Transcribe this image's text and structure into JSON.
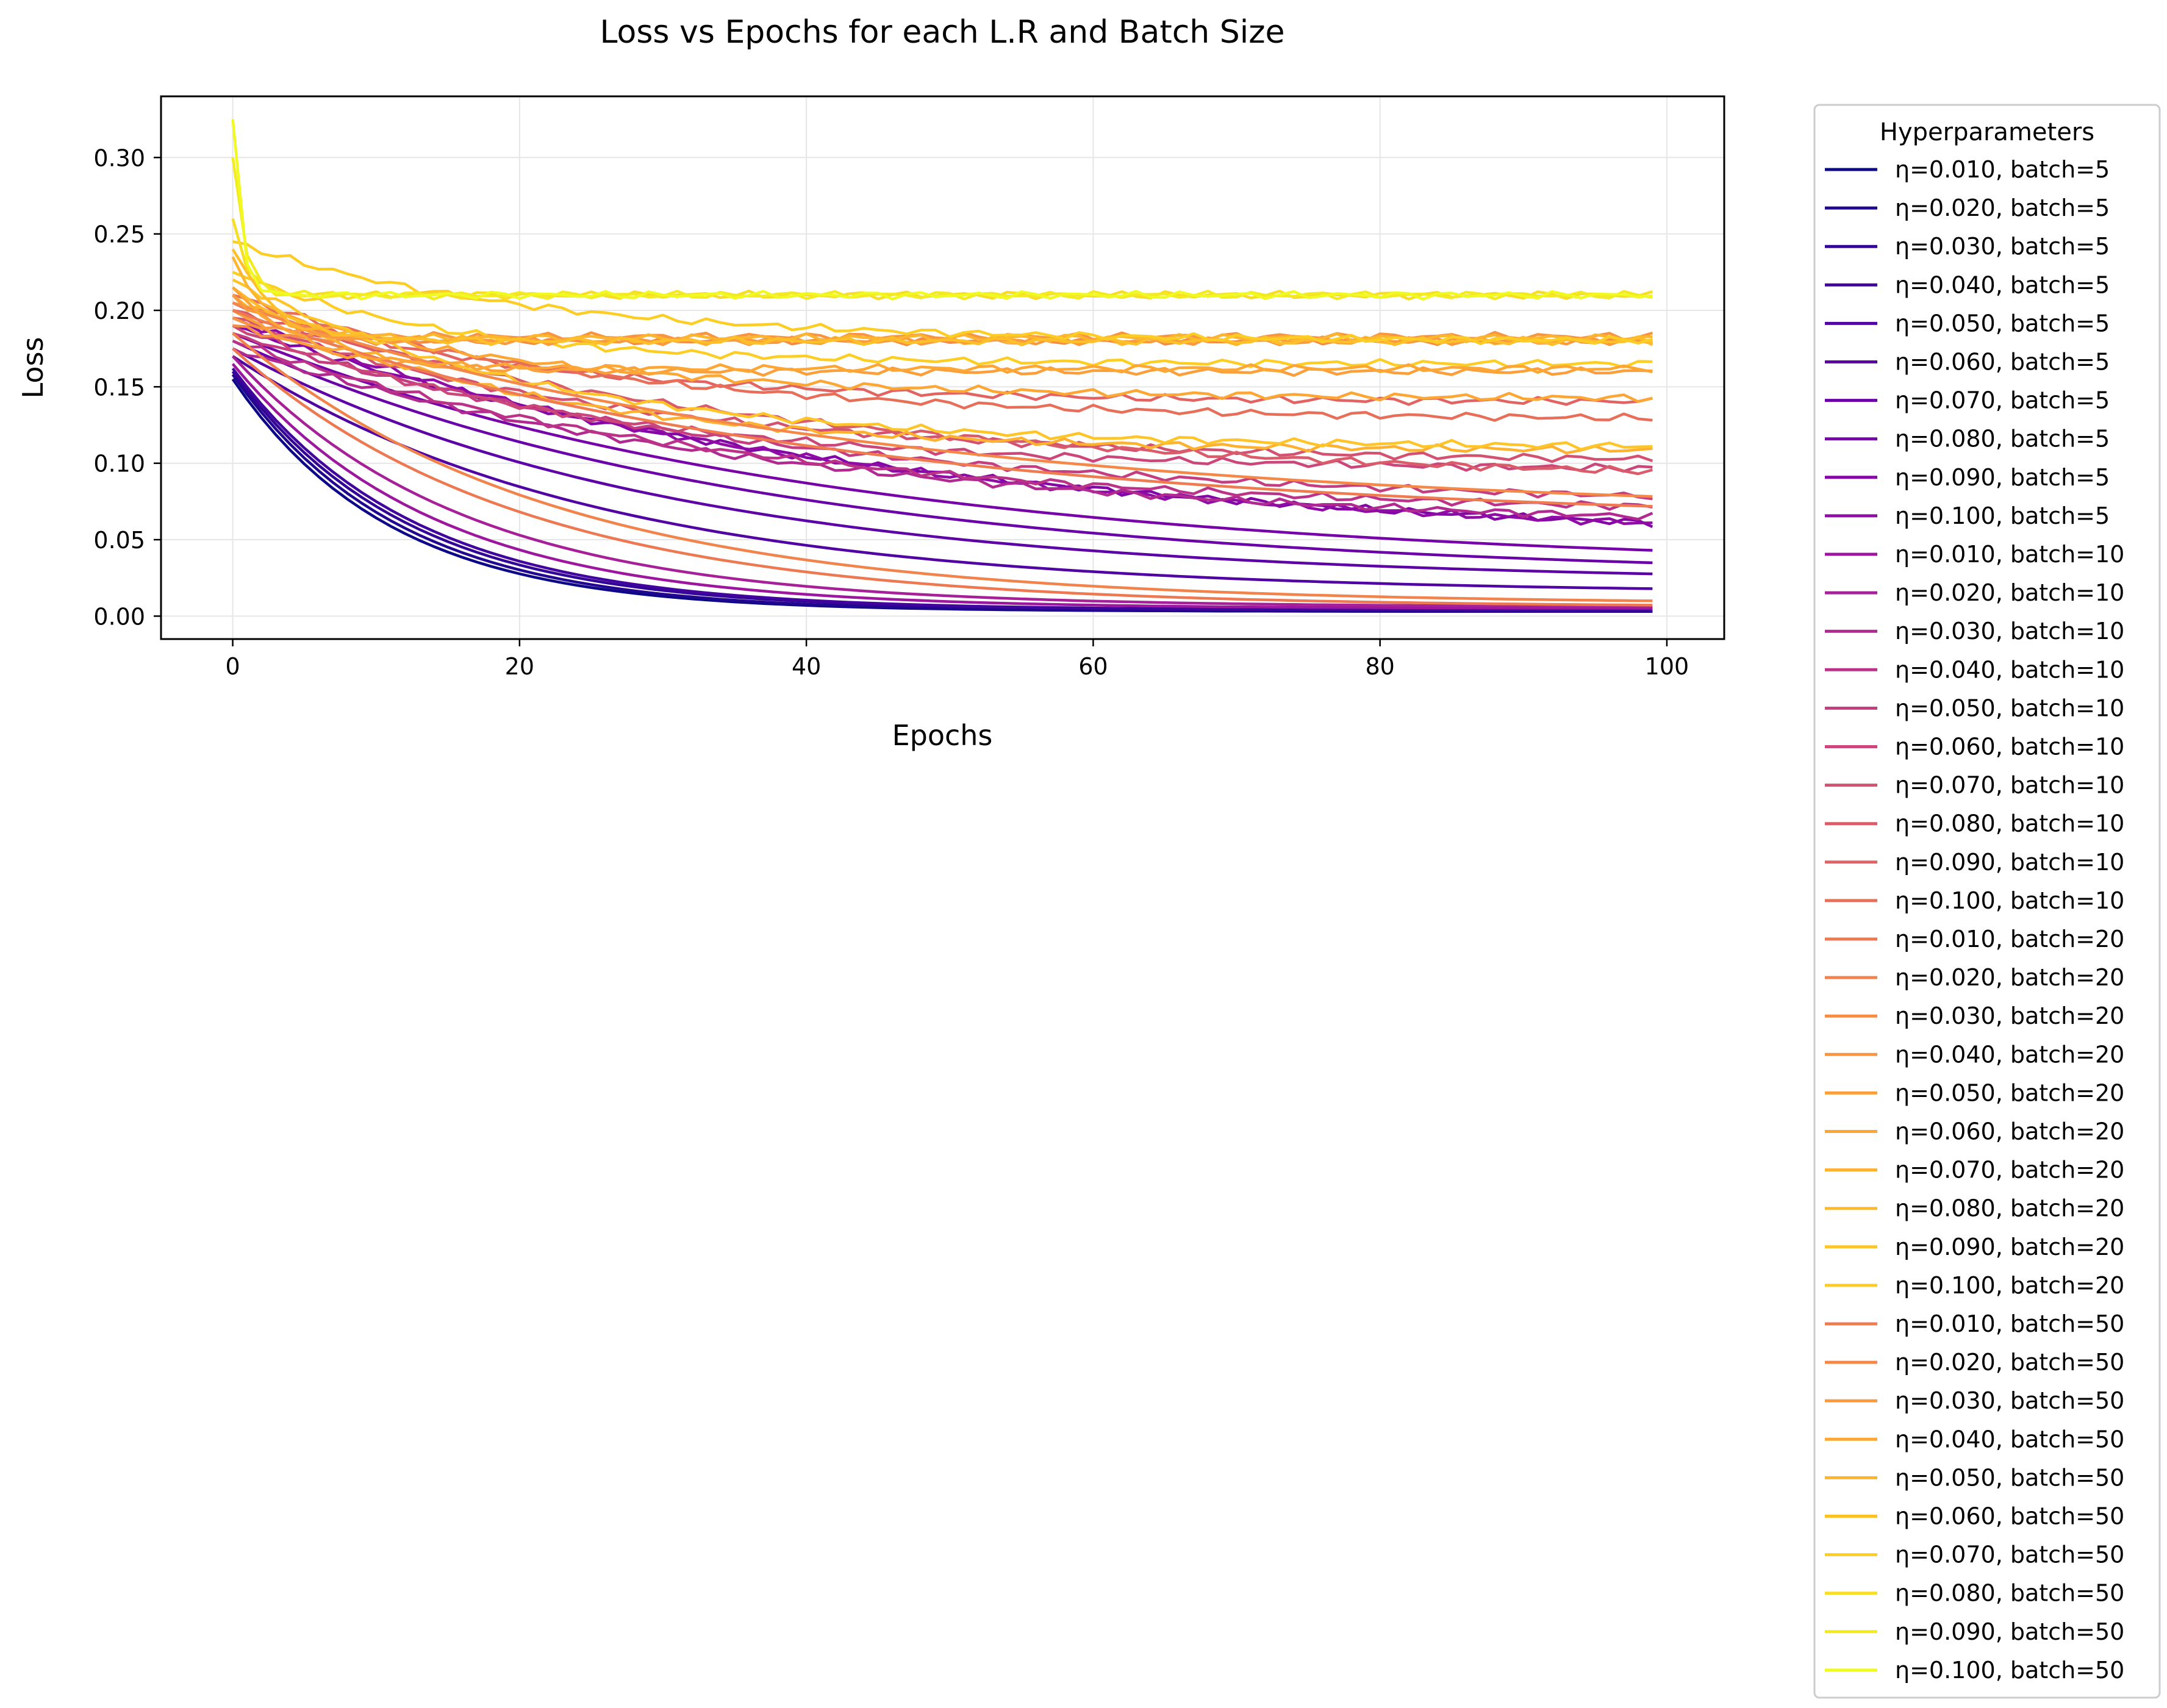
{
  "chart_data": {
    "type": "line",
    "title": "Loss vs Epochs for each L.R and Batch Size",
    "xlabel": "Epochs",
    "ylabel": "Loss",
    "xlim": [
      -5,
      104
    ],
    "ylim": [
      -0.015,
      0.34
    ],
    "xticks": [
      0,
      20,
      40,
      60,
      80,
      100
    ],
    "xtick_labels": [
      "0",
      "20",
      "40",
      "60",
      "80",
      "100"
    ],
    "yticks": [
      0.0,
      0.05,
      0.1,
      0.15,
      0.2,
      0.25,
      0.3
    ],
    "ytick_labels": [
      "0.00",
      "0.05",
      "0.10",
      "0.15",
      "0.20",
      "0.25",
      "0.30"
    ],
    "grid": true,
    "legend_title": "Hyperparameters",
    "legend_position": "outside-right",
    "x_range": [
      0,
      99
    ],
    "series": [
      {
        "name": "η=0.010, batch=5",
        "color": "#0d0887",
        "start": 0.155,
        "end": 0.003,
        "tau": 11.0,
        "smooth": true
      },
      {
        "name": "η=0.020, batch=5",
        "color": "#220690",
        "start": 0.158,
        "end": 0.003,
        "tau": 11.5,
        "smooth": true
      },
      {
        "name": "η=0.030, batch=5",
        "color": "#330597",
        "start": 0.16,
        "end": 0.004,
        "tau": 12.0,
        "smooth": true
      },
      {
        "name": "η=0.040, batch=5",
        "color": "#41049d",
        "start": 0.162,
        "end": 0.004,
        "tau": 12.5,
        "smooth": true
      },
      {
        "name": "η=0.050, batch=5",
        "color": "#5002a2",
        "start": 0.17,
        "end": 0.015,
        "tau": 25.0,
        "smooth": true
      },
      {
        "name": "η=0.060, batch=5",
        "color": "#5c01a6",
        "start": 0.175,
        "end": 0.022,
        "tau": 30.0,
        "smooth": true
      },
      {
        "name": "η=0.070, batch=5",
        "color": "#6a00a8",
        "start": 0.18,
        "end": 0.025,
        "tau": 36.0,
        "smooth": true
      },
      {
        "name": "η=0.080, batch=5",
        "color": "#7701a8",
        "start": 0.185,
        "end": 0.03,
        "tau": 40.0,
        "smooth": true
      },
      {
        "name": "η=0.090, batch=5",
        "color": "#8405a7",
        "start": 0.19,
        "end": 0.045,
        "tau": 45.0,
        "smooth": false
      },
      {
        "name": "η=0.100, batch=5",
        "color": "#8f0da4",
        "start": 0.195,
        "end": 0.047,
        "tau": 42.0,
        "smooth": false
      },
      {
        "name": "η=0.010, batch=10",
        "color": "#9c179e",
        "start": 0.165,
        "end": 0.005,
        "tau": 14.0,
        "smooth": true
      },
      {
        "name": "η=0.020, batch=10",
        "color": "#a62098",
        "start": 0.17,
        "end": 0.006,
        "tau": 16.0,
        "smooth": true
      },
      {
        "name": "η=0.030, batch=10",
        "color": "#b12a90",
        "start": 0.175,
        "end": 0.055,
        "tau": 40.0,
        "smooth": false
      },
      {
        "name": "η=0.040, batch=10",
        "color": "#ba3388",
        "start": 0.18,
        "end": 0.065,
        "tau": 35.0,
        "smooth": false
      },
      {
        "name": "η=0.050, batch=10",
        "color": "#c33d80",
        "start": 0.185,
        "end": 0.07,
        "tau": 38.0,
        "smooth": false
      },
      {
        "name": "η=0.060, batch=10",
        "color": "#cb4679",
        "start": 0.19,
        "end": 0.095,
        "tau": 25.0,
        "smooth": false
      },
      {
        "name": "η=0.070, batch=10",
        "color": "#d35171",
        "start": 0.195,
        "end": 0.1,
        "tau": 28.0,
        "smooth": false
      },
      {
        "name": "η=0.080, batch=10",
        "color": "#da5b69",
        "start": 0.2,
        "end": 0.085,
        "tau": 40.0,
        "smooth": false
      },
      {
        "name": "η=0.090, batch=10",
        "color": "#e16462",
        "start": 0.205,
        "end": 0.14,
        "tau": 20.0,
        "smooth": false
      },
      {
        "name": "η=0.100, batch=10",
        "color": "#e76f5a",
        "start": 0.21,
        "end": 0.128,
        "tau": 25.0,
        "smooth": false
      },
      {
        "name": "η=0.010, batch=20",
        "color": "#ed7953",
        "start": 0.175,
        "end": 0.006,
        "tau": 20.0,
        "smooth": true
      },
      {
        "name": "η=0.020, batch=20",
        "color": "#f1834c",
        "start": 0.185,
        "end": 0.008,
        "tau": 22.0,
        "smooth": true
      },
      {
        "name": "η=0.030, batch=20",
        "color": "#f58c46",
        "start": 0.19,
        "end": 0.18,
        "tau": 3.0,
        "smooth": false
      },
      {
        "name": "η=0.040, batch=20",
        "color": "#f89540",
        "start": 0.195,
        "end": 0.183,
        "tau": 3.0,
        "smooth": false
      },
      {
        "name": "η=0.050, batch=20",
        "color": "#fa9f3a",
        "start": 0.2,
        "end": 0.16,
        "tau": 6.0,
        "smooth": false
      },
      {
        "name": "η=0.060, batch=20",
        "color": "#fca636",
        "start": 0.205,
        "end": 0.142,
        "tau": 22.0,
        "smooth": false
      },
      {
        "name": "η=0.070, batch=20",
        "color": "#fdb130",
        "start": 0.21,
        "end": 0.108,
        "tau": 20.0,
        "smooth": false
      },
      {
        "name": "η=0.080, batch=20",
        "color": "#feba2c",
        "start": 0.215,
        "end": 0.18,
        "tau": 4.0,
        "smooth": false
      },
      {
        "name": "η=0.090, batch=20",
        "color": "#fec52a",
        "start": 0.22,
        "end": 0.11,
        "tau": 22.0,
        "smooth": false
      },
      {
        "name": "η=0.100, batch=20",
        "color": "#fcce25",
        "start": 0.225,
        "end": 0.165,
        "tau": 15.0,
        "smooth": false
      },
      {
        "name": "η=0.010, batch=50",
        "color": "#ef7b51",
        "start": 0.2,
        "end": 0.06,
        "tau": 40.0,
        "smooth": true
      },
      {
        "name": "η=0.020, batch=50",
        "color": "#f48849",
        "start": 0.205,
        "end": 0.065,
        "tau": 42.0,
        "smooth": true
      },
      {
        "name": "η=0.030, batch=50",
        "color": "#f99a3e",
        "start": 0.21,
        "end": 0.18,
        "tau": 3.0,
        "smooth": false
      },
      {
        "name": "η=0.040, batch=50",
        "color": "#fca636",
        "start": 0.215,
        "end": 0.162,
        "tau": 5.0,
        "smooth": false
      },
      {
        "name": "η=0.050, batch=50",
        "color": "#fdb42f",
        "start": 0.235,
        "end": 0.182,
        "tau": 2.5,
        "smooth": false
      },
      {
        "name": "η=0.060, batch=50",
        "color": "#fec029",
        "start": 0.24,
        "end": 0.18,
        "tau": 3.0,
        "smooth": false
      },
      {
        "name": "η=0.070, batch=50",
        "color": "#fccd25",
        "start": 0.245,
        "end": 0.18,
        "tau": 20.0,
        "smooth": false
      },
      {
        "name": "η=0.080, batch=50",
        "color": "#f7dd23",
        "start": 0.26,
        "end": 0.21,
        "tau": 1.0,
        "smooth": false
      },
      {
        "name": "η=0.090, batch=50",
        "color": "#f3ea21",
        "start": 0.3,
        "end": 0.21,
        "tau": 0.8,
        "smooth": false
      },
      {
        "name": "η=0.100, batch=50",
        "color": "#f0f921",
        "start": 0.325,
        "end": 0.21,
        "tau": 0.6,
        "smooth": false
      }
    ]
  }
}
